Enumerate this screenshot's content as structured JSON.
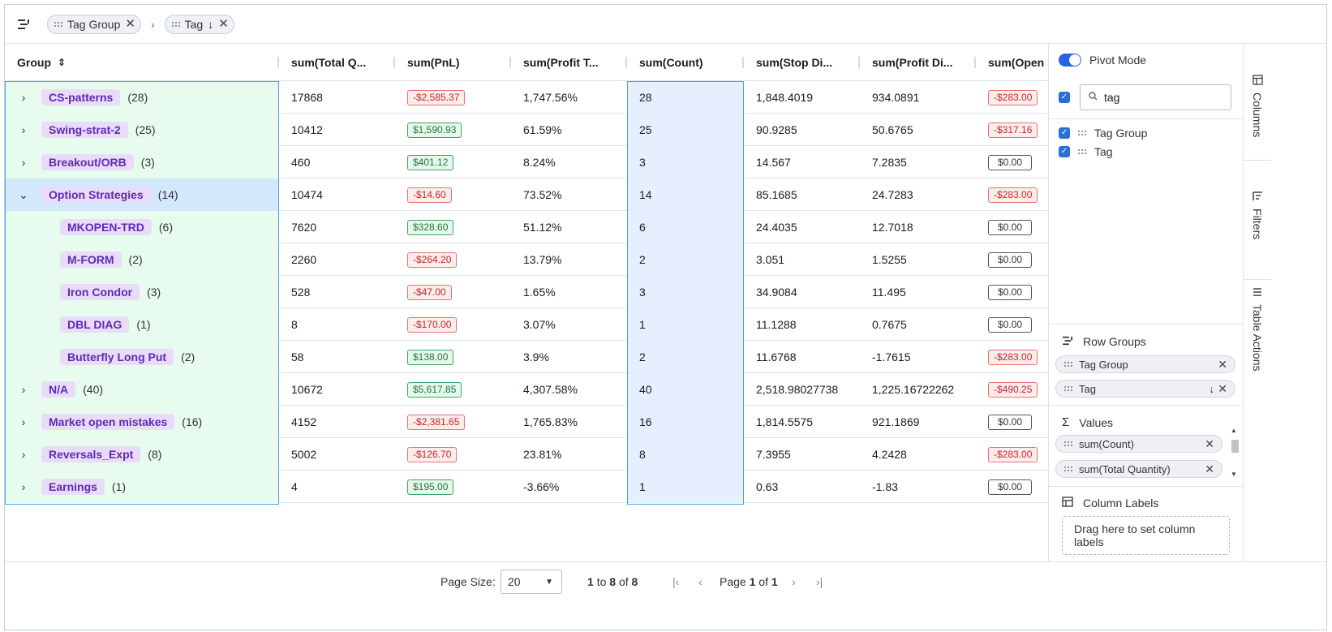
{
  "topbar": {
    "pills": [
      {
        "label": "Tag Group"
      },
      {
        "label": "Tag",
        "sort": "↓"
      }
    ],
    "separator": "›"
  },
  "columns": [
    {
      "label": "Group"
    },
    {
      "label": "sum(Total Q..."
    },
    {
      "label": "sum(PnL)"
    },
    {
      "label": "sum(Profit T..."
    },
    {
      "label": "sum(Count)"
    },
    {
      "label": "sum(Stop Di..."
    },
    {
      "label": "sum(Profit Di..."
    },
    {
      "label": "sum(Open S"
    }
  ],
  "rows": [
    {
      "expander": "›",
      "tag": "CS-patterns",
      "count": "(28)",
      "qty": "17868",
      "pnl": "-$2,585.37",
      "pnl_kind": "neg",
      "profit_t": "1,747.56%",
      "cnt": "28",
      "stop": "1,848.4019",
      "profit_d": "934.0891",
      "open": "-$283.00",
      "open_kind": "neg",
      "level": 0
    },
    {
      "expander": "›",
      "tag": "Swing-strat-2",
      "count": "(25)",
      "qty": "10412",
      "pnl": "$1,590.93",
      "pnl_kind": "pos",
      "profit_t": "61.59%",
      "cnt": "25",
      "stop": "90.9285",
      "profit_d": "50.6765",
      "open": "-$317.16",
      "open_kind": "neg",
      "level": 0
    },
    {
      "expander": "›",
      "tag": "Breakout/ORB",
      "count": "(3)",
      "qty": "460",
      "pnl": "$401.12",
      "pnl_kind": "pos",
      "profit_t": "8.24%",
      "cnt": "3",
      "stop": "14.567",
      "profit_d": "7.2835",
      "open": "$0.00",
      "open_kind": "zero",
      "level": 0
    },
    {
      "expander": "⌄",
      "tag": "Option Strategies",
      "count": "(14)",
      "qty": "10474",
      "pnl": "-$14.60",
      "pnl_kind": "neg",
      "profit_t": "73.52%",
      "cnt": "14",
      "stop": "85.1685",
      "profit_d": "24.7283",
      "open": "-$283.00",
      "open_kind": "neg",
      "level": 0,
      "selected": true
    },
    {
      "expander": "",
      "tag": "MKOPEN-TRD",
      "count": "(6)",
      "qty": "7620",
      "pnl": "$328.60",
      "pnl_kind": "pos",
      "profit_t": "51.12%",
      "cnt": "6",
      "stop": "24.4035",
      "profit_d": "12.7018",
      "open": "$0.00",
      "open_kind": "zero",
      "level": 1
    },
    {
      "expander": "",
      "tag": "M-FORM",
      "count": "(2)",
      "qty": "2260",
      "pnl": "-$264.20",
      "pnl_kind": "neg",
      "profit_t": "13.79%",
      "cnt": "2",
      "stop": "3.051",
      "profit_d": "1.5255",
      "open": "$0.00",
      "open_kind": "zero",
      "level": 1
    },
    {
      "expander": "",
      "tag": "Iron Condor",
      "count": "(3)",
      "qty": "528",
      "pnl": "-$47.00",
      "pnl_kind": "neg",
      "profit_t": "1.65%",
      "cnt": "3",
      "stop": "34.9084",
      "profit_d": "11.495",
      "open": "$0.00",
      "open_kind": "zero",
      "level": 1
    },
    {
      "expander": "",
      "tag": "DBL DIAG",
      "count": "(1)",
      "qty": "8",
      "pnl": "-$170.00",
      "pnl_kind": "neg",
      "profit_t": "3.07%",
      "cnt": "1",
      "stop": "11.1288",
      "profit_d": "0.7675",
      "open": "$0.00",
      "open_kind": "zero",
      "level": 1
    },
    {
      "expander": "",
      "tag": "Butterfly Long Put",
      "count": "(2)",
      "qty": "58",
      "pnl": "$138.00",
      "pnl_kind": "pos",
      "profit_t": "3.9%",
      "cnt": "2",
      "stop": "11.6768",
      "profit_d": "-1.7615",
      "open": "-$283.00",
      "open_kind": "neg",
      "level": 1
    },
    {
      "expander": "›",
      "tag": "N/A",
      "count": "(40)",
      "qty": "10672",
      "pnl": "$5,617.85",
      "pnl_kind": "pos",
      "profit_t": "4,307.58%",
      "cnt": "40",
      "stop": "2,518.98027738",
      "profit_d": "1,225.16722262",
      "open": "-$490.25",
      "open_kind": "neg",
      "level": 0
    },
    {
      "expander": "›",
      "tag": "Market open mistakes",
      "count": "(16)",
      "qty": "4152",
      "pnl": "-$2,381.65",
      "pnl_kind": "neg",
      "profit_t": "1,765.83%",
      "cnt": "16",
      "stop": "1,814.5575",
      "profit_d": "921.1869",
      "open": "$0.00",
      "open_kind": "zero",
      "level": 0
    },
    {
      "expander": "›",
      "tag": "Reversals_Expt",
      "count": "(8)",
      "qty": "5002",
      "pnl": "-$126.70",
      "pnl_kind": "neg",
      "profit_t": "23.81%",
      "cnt": "8",
      "stop": "7.3955",
      "profit_d": "4.2428",
      "open": "-$283.00",
      "open_kind": "neg",
      "level": 0
    },
    {
      "expander": "›",
      "tag": "Earnings",
      "count": "(1)",
      "qty": "4",
      "pnl": "$195.00",
      "pnl_kind": "pos",
      "profit_t": "-3.66%",
      "cnt": "1",
      "stop": "0.63",
      "profit_d": "-1.83",
      "open": "$0.00",
      "open_kind": "zero",
      "level": 0
    }
  ],
  "footer": {
    "page_size_label": "Page Size:",
    "page_size_value": "20",
    "range_from": "1",
    "range_to_word": "to",
    "range_to": "8",
    "range_of_word": "of",
    "range_total": "8",
    "page_word": "Page",
    "page_current": "1",
    "page_of_word": "of",
    "page_total": "1"
  },
  "side": {
    "pivot_label": "Pivot Mode",
    "search_value": "tag",
    "column_items": [
      "Tag Group",
      "Tag"
    ],
    "row_groups_title": "Row Groups",
    "row_group_chips": [
      {
        "label": "Tag Group"
      },
      {
        "label": "Tag",
        "sort": "↓"
      }
    ],
    "values_title": "Values",
    "value_chips": [
      "sum(Count)",
      "sum(Total Quantity)"
    ],
    "column_labels_title": "Column Labels",
    "column_labels_drop": "Drag here to set column labels"
  },
  "rail": {
    "tabs": [
      "Columns",
      "Filters",
      "Table Actions"
    ]
  },
  "colors": {
    "group_bg": "#e8fbef",
    "count_bg": "#e5effd",
    "accent": "#2563eb",
    "tag_text": "#5b2bb8"
  }
}
